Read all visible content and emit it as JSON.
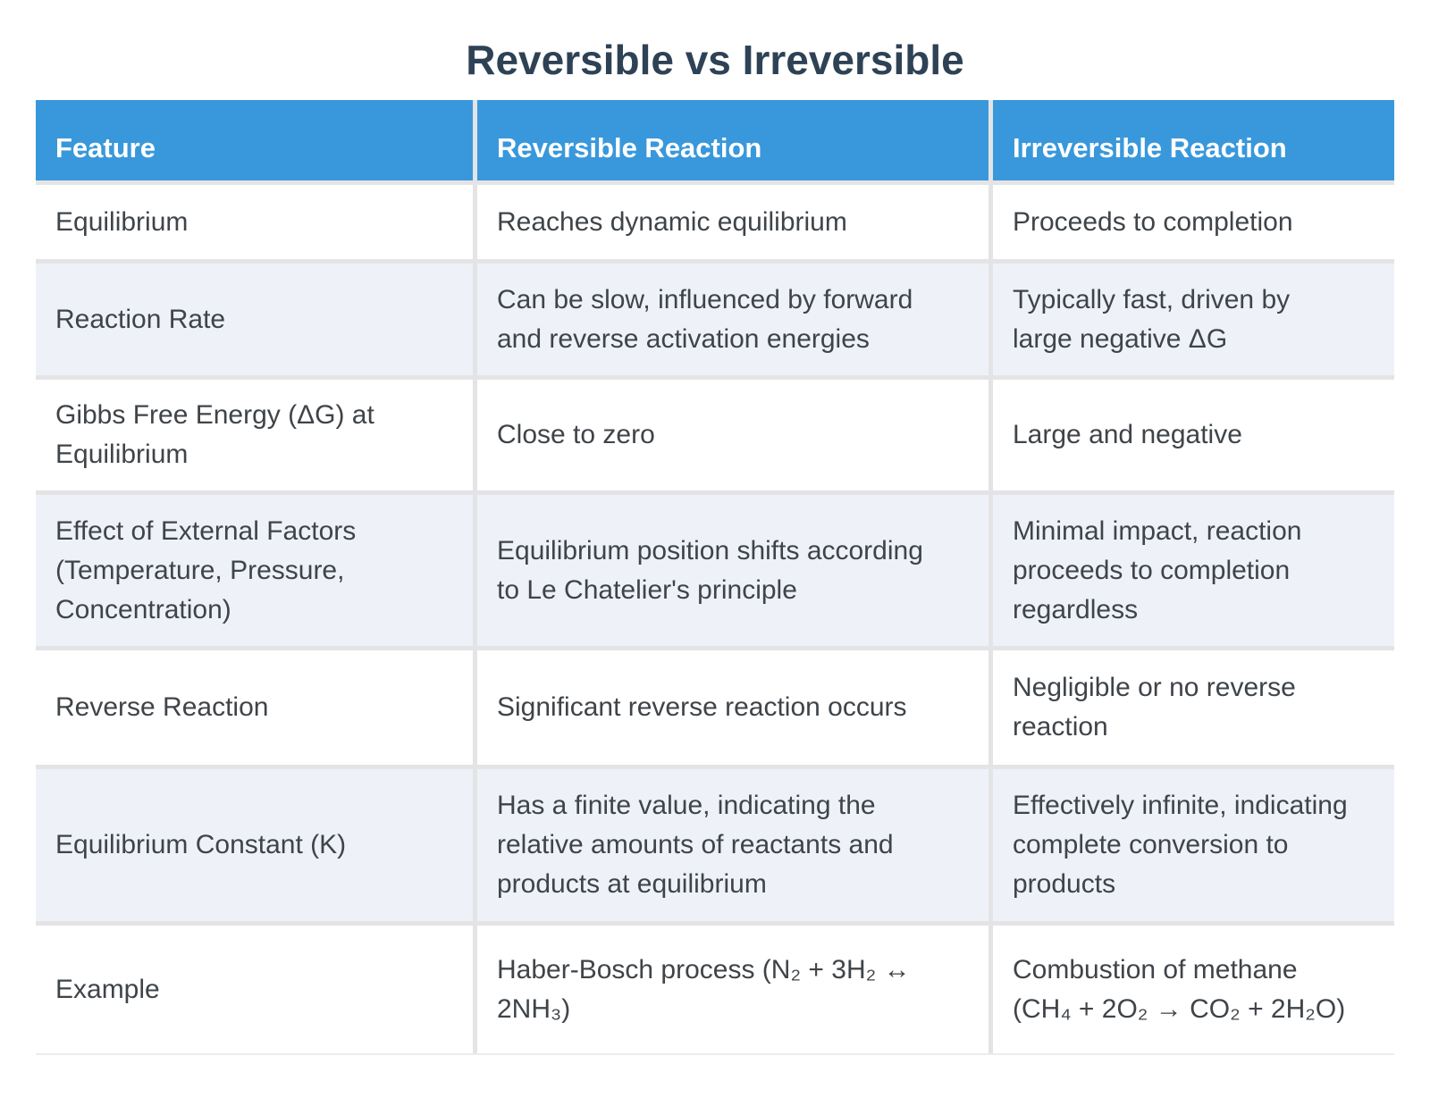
{
  "title": "Reversible vs Irreversible",
  "colors": {
    "header_bg": "#3998db",
    "header_text": "#ffffff",
    "row_bg": "#ffffff",
    "row_alt_bg": "#eef2f8",
    "grid_gap": "#e4e4e6",
    "body_text": "#3f4449",
    "title_text": "#2e4256"
  },
  "table": {
    "headers": [
      "Feature",
      "Reversible Reaction",
      "Irreversible Reaction"
    ],
    "rows": [
      {
        "feature": "Equilibrium",
        "reversible": "Reaches dynamic equilibrium",
        "irreversible": "Proceeds to completion"
      },
      {
        "feature": "Reaction Rate",
        "reversible": "Can be slow, influenced by forward\nand reverse activation energies",
        "irreversible": "Typically fast, driven by\nlarge negative ΔG"
      },
      {
        "feature": "Gibbs Free Energy (ΔG) at\nEquilibrium",
        "reversible": "Close to zero",
        "irreversible": "Large and negative"
      },
      {
        "feature": "Effect of External Factors\n(Temperature, Pressure,\nConcentration)",
        "reversible": "Equilibrium position shifts according\nto Le Chatelier's principle",
        "irreversible": "Minimal impact, reaction\nproceeds to completion\nregardless"
      },
      {
        "feature": "Reverse Reaction",
        "reversible": "Significant reverse reaction occurs",
        "irreversible": "Negligible or no reverse\nreaction"
      },
      {
        "feature": "Equilibrium Constant (K)",
        "reversible": "Has a finite value, indicating the\nrelative amounts of reactants and\nproducts at equilibrium",
        "irreversible": "Effectively infinite, indicating\ncomplete conversion to\nproducts"
      },
      {
        "feature": "Example",
        "reversible": "Haber-Bosch process (N₂ + 3H₂ ↔\n2NH₃)",
        "irreversible": "Combustion of methane\n(CH₄ + 2O₂ → CO₂ + 2H₂O)"
      }
    ]
  },
  "chart_data": {
    "type": "table",
    "title": "Reversible vs Irreversible",
    "columns": [
      "Feature",
      "Reversible Reaction",
      "Irreversible Reaction"
    ],
    "rows": [
      [
        "Equilibrium",
        "Reaches dynamic equilibrium",
        "Proceeds to completion"
      ],
      [
        "Reaction Rate",
        "Can be slow, influenced by forward and reverse activation energies",
        "Typically fast, driven by large negative ΔG"
      ],
      [
        "Gibbs Free Energy (ΔG) at Equilibrium",
        "Close to zero",
        "Large and negative"
      ],
      [
        "Effect of External Factors (Temperature, Pressure, Concentration)",
        "Equilibrium position shifts according to Le Chatelier's principle",
        "Minimal impact, reaction proceeds to completion regardless"
      ],
      [
        "Reverse Reaction",
        "Significant reverse reaction occurs",
        "Negligible or no reverse reaction"
      ],
      [
        "Equilibrium Constant (K)",
        "Has a finite value, indicating the relative amounts of reactants and products at equilibrium",
        "Effectively infinite, indicating complete conversion to products"
      ],
      [
        "Example",
        "Haber-Bosch process (N₂ + 3H₂ ↔ 2NH₃)",
        "Combustion of methane (CH₄ + 2O₂ → CO₂ + 2H₂O)"
      ]
    ]
  }
}
